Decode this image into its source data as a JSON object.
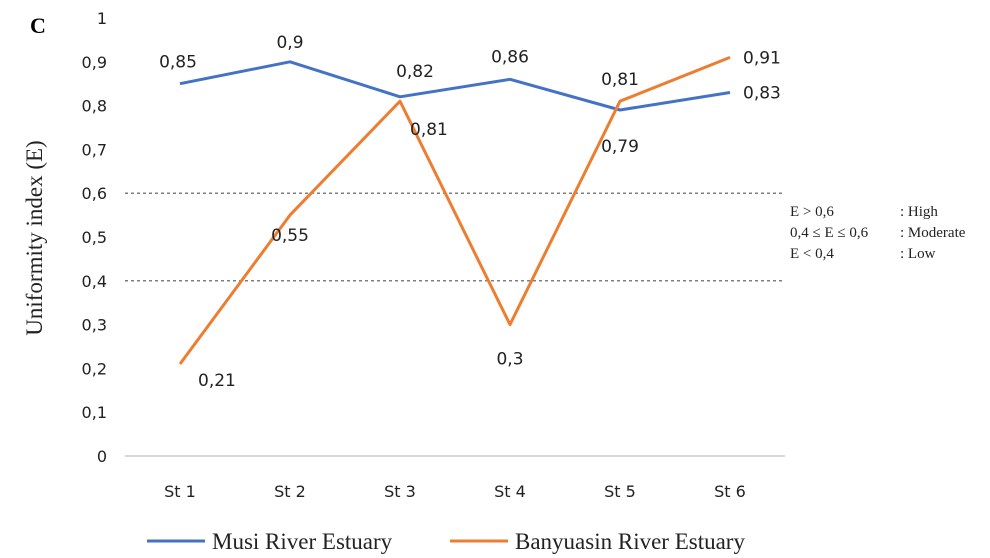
{
  "panel_label": "C",
  "thresholds_text": [
    {
      "condition": "E > 0,6",
      "category": ": High"
    },
    {
      "condition": "0,4 ≤ E ≤ 0,6",
      "category": ": Moderate"
    },
    {
      "condition": "E < 0,4",
      "category": ": Low"
    }
  ],
  "colors": {
    "musi": "#4472C4",
    "banyuasin": "#ED7D31",
    "axis": "#bfbfbf",
    "dashed": "#555555"
  },
  "chart_data": {
    "type": "line",
    "title": "",
    "xlabel": "",
    "ylabel": "Uniformity index  (E)",
    "categories": [
      "St 1",
      "St 2",
      "St 3",
      "St 4",
      "St 5",
      "St 6"
    ],
    "y_ticks": [
      "0",
      "0,1",
      "0,2",
      "0,3",
      "0,4",
      "0,5",
      "0,6",
      "0,7",
      "0,8",
      "0,9",
      "1"
    ],
    "ylim": [
      0,
      1
    ],
    "grid": false,
    "legend_position": "bottom",
    "reference_lines": [
      0.6,
      0.4
    ],
    "series": [
      {
        "name": "Musi River Estuary",
        "values": [
          0.85,
          0.9,
          0.82,
          0.86,
          0.79,
          0.83
        ],
        "labels": [
          "0,85",
          "0,9",
          "0,82",
          "0,86",
          "0,79",
          "0,83"
        ]
      },
      {
        "name": "Banyuasin River Estuary",
        "values": [
          0.21,
          0.55,
          0.81,
          0.3,
          0.81,
          0.91
        ],
        "labels": [
          "0,21",
          "0,55",
          "0,81",
          "0,3",
          "0,81",
          "0,91"
        ]
      }
    ]
  }
}
